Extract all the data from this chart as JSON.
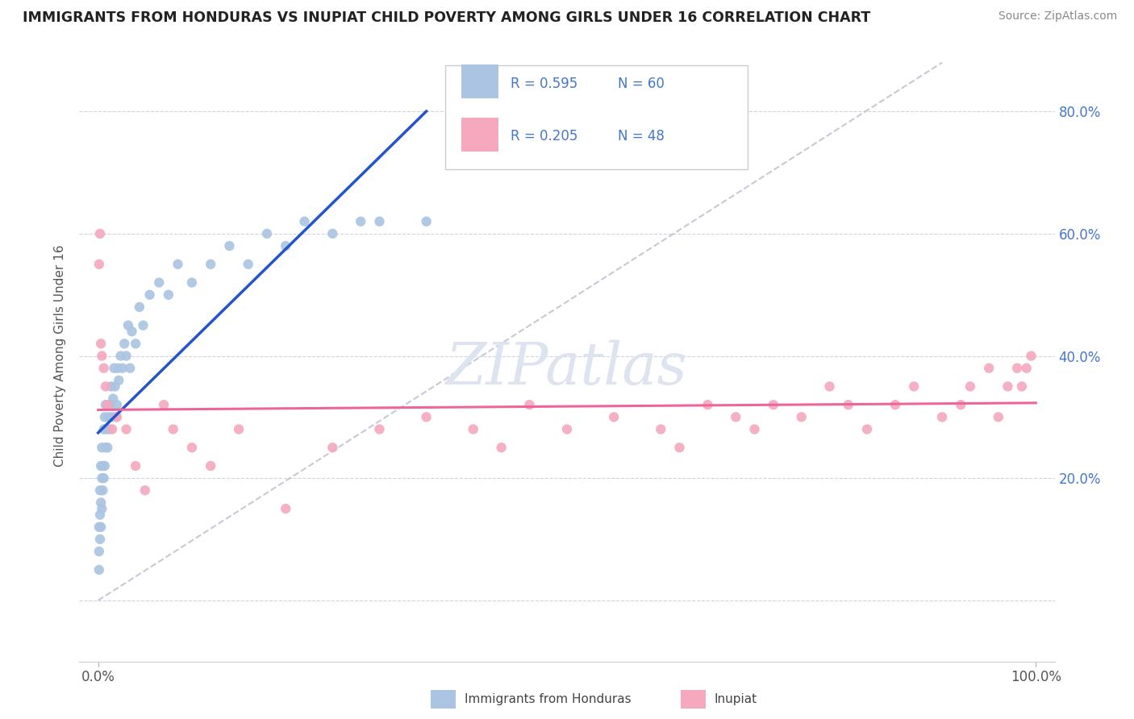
{
  "title": "IMMIGRANTS FROM HONDURAS VS INUPIAT CHILD POVERTY AMONG GIRLS UNDER 16 CORRELATION CHART",
  "source": "Source: ZipAtlas.com",
  "ylabel": "Child Poverty Among Girls Under 16",
  "color_blue": "#aac4e2",
  "color_pink": "#f5a8be",
  "line_blue": "#2255cc",
  "line_pink": "#ee6699",
  "line_dashed_color": "#bbbbcc",
  "watermark_color": "#dde4ef",
  "right_tick_color": "#4477cc",
  "title_color": "#222222",
  "source_color": "#888888",
  "ylabel_color": "#555555",
  "grid_color": "#ccccdd",
  "blue_scatter_x": [
    0.001,
    0.001,
    0.001,
    0.002,
    0.002,
    0.002,
    0.003,
    0.003,
    0.003,
    0.004,
    0.004,
    0.004,
    0.005,
    0.005,
    0.006,
    0.006,
    0.007,
    0.007,
    0.008,
    0.008,
    0.009,
    0.01,
    0.01,
    0.011,
    0.012,
    0.013,
    0.014,
    0.015,
    0.016,
    0.017,
    0.018,
    0.019,
    0.02,
    0.021,
    0.022,
    0.024,
    0.026,
    0.028,
    0.03,
    0.032,
    0.034,
    0.036,
    0.04,
    0.044,
    0.048,
    0.055,
    0.065,
    0.075,
    0.085,
    0.1,
    0.12,
    0.14,
    0.16,
    0.18,
    0.2,
    0.22,
    0.25,
    0.28,
    0.3,
    0.35
  ],
  "blue_scatter_y": [
    0.05,
    0.08,
    0.12,
    0.1,
    0.14,
    0.18,
    0.12,
    0.16,
    0.22,
    0.15,
    0.2,
    0.25,
    0.18,
    0.22,
    0.2,
    0.28,
    0.22,
    0.3,
    0.25,
    0.32,
    0.28,
    0.25,
    0.32,
    0.3,
    0.28,
    0.32,
    0.35,
    0.3,
    0.33,
    0.38,
    0.35,
    0.3,
    0.32,
    0.38,
    0.36,
    0.4,
    0.38,
    0.42,
    0.4,
    0.45,
    0.38,
    0.44,
    0.42,
    0.48,
    0.45,
    0.5,
    0.52,
    0.5,
    0.55,
    0.52,
    0.55,
    0.58,
    0.55,
    0.6,
    0.58,
    0.62,
    0.6,
    0.62,
    0.62,
    0.62
  ],
  "pink_scatter_x": [
    0.001,
    0.002,
    0.003,
    0.004,
    0.006,
    0.008,
    0.01,
    0.015,
    0.02,
    0.03,
    0.04,
    0.05,
    0.07,
    0.08,
    0.1,
    0.12,
    0.15,
    0.2,
    0.25,
    0.3,
    0.35,
    0.4,
    0.43,
    0.46,
    0.5,
    0.55,
    0.6,
    0.62,
    0.65,
    0.68,
    0.7,
    0.72,
    0.75,
    0.78,
    0.8,
    0.82,
    0.85,
    0.87,
    0.9,
    0.92,
    0.93,
    0.95,
    0.96,
    0.97,
    0.98,
    0.985,
    0.99,
    0.995
  ],
  "pink_scatter_y": [
    0.55,
    0.6,
    0.42,
    0.4,
    0.38,
    0.35,
    0.32,
    0.28,
    0.3,
    0.28,
    0.22,
    0.18,
    0.32,
    0.28,
    0.25,
    0.22,
    0.28,
    0.15,
    0.25,
    0.28,
    0.3,
    0.28,
    0.25,
    0.32,
    0.28,
    0.3,
    0.28,
    0.25,
    0.32,
    0.3,
    0.28,
    0.32,
    0.3,
    0.35,
    0.32,
    0.28,
    0.32,
    0.35,
    0.3,
    0.32,
    0.35,
    0.38,
    0.3,
    0.35,
    0.38,
    0.35,
    0.38,
    0.4
  ],
  "xlim": [
    -0.02,
    1.02
  ],
  "ylim": [
    -0.1,
    0.9
  ],
  "yticks": [
    0.0,
    0.2,
    0.4,
    0.6,
    0.8
  ],
  "xticks": [
    0.0,
    1.0
  ],
  "xticklabels": [
    "0.0%",
    "100.0%"
  ],
  "yticklabels_right": [
    "20.0%",
    "40.0%",
    "60.0%",
    "80.0%"
  ],
  "yticks_right": [
    0.2,
    0.4,
    0.6,
    0.8
  ],
  "legend_r1": "R = 0.595",
  "legend_n1": "N = 60",
  "legend_r2": "R = 0.205",
  "legend_n2": "N = 48",
  "bottom_label1": "Immigrants from Honduras",
  "bottom_label2": "Inupiat"
}
